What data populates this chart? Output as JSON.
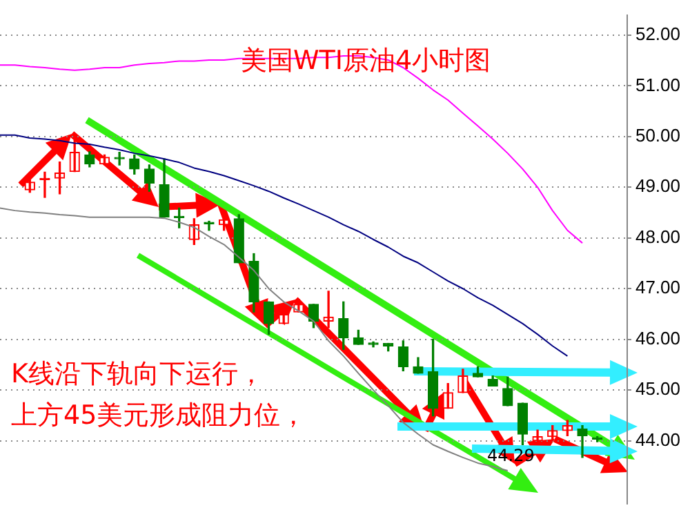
{
  "chart_data": {
    "type": "candlestick",
    "title": "美国WTI原油4小时图",
    "categories": [
      null,
      null,
      null,
      null,
      null,
      null,
      null,
      null,
      null,
      null,
      null,
      null,
      null,
      null,
      null,
      null,
      null,
      null,
      null,
      null,
      null,
      null,
      null,
      null,
      null,
      null,
      null,
      null,
      null,
      null,
      null,
      null,
      null,
      null,
      null,
      null,
      null,
      null,
      null,
      null,
      null,
      null,
      null
    ],
    "ohlc": [
      null,
      null,
      [
        48.95,
        49.15,
        48.9,
        49.1
      ],
      [
        49.15,
        49.3,
        48.8,
        49.15
      ],
      [
        49.18,
        49.5,
        48.87,
        49.28
      ],
      [
        49.31,
        49.95,
        49.31,
        49.69
      ],
      [
        49.64,
        49.7,
        49.4,
        49.46
      ],
      [
        49.46,
        49.64,
        49.46,
        49.59
      ],
      [
        49.56,
        49.69,
        49.44,
        49.56
      ],
      [
        49.56,
        49.64,
        49.26,
        49.36
      ],
      [
        49.36,
        49.44,
        48.92,
        49.08
      ],
      [
        49.05,
        49.56,
        48.41,
        48.41
      ],
      [
        48.4,
        48.59,
        48.2,
        48.4
      ],
      [
        47.97,
        48.38,
        47.87,
        48.26
      ],
      [
        48.28,
        48.33,
        48.15,
        48.28
      ],
      [
        48.26,
        48.54,
        48.15,
        48.36
      ],
      [
        48.38,
        48.46,
        47.51,
        47.51
      ],
      [
        47.54,
        47.69,
        46.54,
        46.74
      ],
      [
        46.74,
        46.74,
        46.1,
        46.31
      ],
      [
        46.31,
        46.69,
        46.31,
        46.49
      ],
      [
        46.54,
        46.79,
        46.54,
        46.69
      ],
      [
        46.69,
        46.69,
        46.23,
        46.36
      ],
      [
        46.36,
        46.95,
        46.23,
        46.44
      ],
      [
        46.41,
        46.74,
        45.8,
        46.03
      ],
      [
        46.03,
        46.18,
        45.9,
        45.9
      ],
      [
        45.9,
        45.95,
        45.85,
        45.9
      ],
      [
        45.92,
        45.92,
        45.77,
        45.87
      ],
      [
        45.85,
        45.97,
        45.38,
        45.46
      ],
      [
        45.46,
        45.64,
        45.33,
        45.33
      ],
      [
        45.36,
        46.0,
        44.49,
        44.64
      ],
      [
        44.64,
        45.13,
        44.64,
        44.95
      ],
      [
        44.95,
        45.41,
        44.95,
        45.28
      ],
      [
        45.33,
        45.46,
        45.26,
        45.26
      ],
      [
        45.21,
        45.28,
        45.08,
        45.08
      ],
      [
        45.03,
        45.26,
        44.69,
        44.69
      ],
      [
        44.74,
        44.74,
        43.92,
        44.13
      ],
      [
        44.0,
        44.21,
        44.0,
        44.08
      ],
      [
        44.08,
        44.3,
        44.0,
        44.2
      ],
      [
        44.2,
        44.4,
        44.1,
        44.3
      ],
      [
        44.23,
        44.3,
        43.67,
        44.1
      ],
      [
        44.03,
        44.08,
        43.98,
        44.03
      ],
      null,
      null
    ],
    "colors": [
      null,
      null,
      "#ff0000",
      "#ff0000",
      "#ff0000",
      "#ff0000",
      "#008000",
      "#ff0000",
      "#008000",
      "#008000",
      "#008000",
      "#008000",
      "#008000",
      "#ff0000",
      "#008000",
      "#ff0000",
      "#008000",
      "#008000",
      "#008000",
      "#ff0000",
      "#ff0000",
      "#008000",
      "#ff0000",
      "#008000",
      "#008000",
      "#008000",
      "#008000",
      "#008000",
      "#008000",
      "#008000",
      "#ff0000",
      "#ff0000",
      "#008000",
      "#008000",
      "#008000",
      "#008000",
      "#ff0000",
      "#ff0000",
      "#ff0000",
      "#008000",
      "#008000",
      null,
      null
    ],
    "series": [
      {
        "type": "line",
        "color": "#ff00ff",
        "values": [
          51.41,
          51.41,
          51.38,
          51.36,
          51.33,
          51.31,
          51.33,
          51.36,
          51.36,
          51.41,
          51.44,
          51.46,
          51.49,
          51.49,
          51.51,
          51.51,
          51.54,
          51.54,
          51.54,
          51.54,
          51.54,
          51.56,
          51.56,
          51.59,
          51.59,
          51.56,
          51.51,
          51.36,
          51.15,
          50.92,
          50.72,
          50.46,
          50.21,
          49.95,
          49.67,
          49.36,
          49.0,
          48.54,
          48.15,
          47.9,
          null,
          null,
          null
        ]
      },
      {
        "type": "line",
        "color": "#000080",
        "values": [
          50.03,
          50.03,
          49.97,
          49.95,
          49.92,
          49.87,
          49.85,
          49.79,
          49.74,
          49.67,
          49.62,
          49.56,
          49.49,
          49.38,
          49.31,
          49.23,
          49.13,
          49.03,
          48.92,
          48.79,
          48.67,
          48.54,
          48.41,
          48.26,
          48.13,
          47.97,
          47.82,
          47.64,
          47.51,
          47.33,
          47.15,
          47.0,
          46.82,
          46.67,
          46.49,
          46.31,
          46.1,
          45.87,
          45.67,
          null,
          null,
          null,
          null
        ]
      },
      {
        "type": "line",
        "color": "#808080",
        "values": [
          48.59,
          48.54,
          48.51,
          48.49,
          48.46,
          48.44,
          48.41,
          48.41,
          48.41,
          48.41,
          48.41,
          48.39,
          48.31,
          48.21,
          48.03,
          47.87,
          47.62,
          47.36,
          47.0,
          46.74,
          46.56,
          46.36,
          45.97,
          45.67,
          45.33,
          45.0,
          44.69,
          44.36,
          44.13,
          43.92,
          43.79,
          43.67,
          43.56,
          43.49,
          43.41,
          null,
          null,
          null,
          null,
          null,
          null,
          null,
          null
        ]
      }
    ],
    "annotations": [
      "K线沿下轨向下运行，",
      "上方45美元形成阻力位，",
      "44.29"
    ],
    "ylim": [
      42.75,
      52.4
    ],
    "yticks": [
      {
        "value": 44,
        "label": "44.00"
      },
      {
        "value": 45,
        "label": "45.00"
      },
      {
        "value": 46,
        "label": "46.00"
      },
      {
        "value": 47,
        "label": "47.00"
      },
      {
        "value": 48,
        "label": "48.00"
      },
      {
        "value": 49,
        "label": "49.00"
      },
      {
        "value": 50,
        "label": "50.00"
      },
      {
        "value": 51,
        "label": "51.00"
      },
      {
        "value": 52,
        "label": "52.00"
      }
    ],
    "grid": "y",
    "legend": false,
    "tick_labels": "y"
  }
}
